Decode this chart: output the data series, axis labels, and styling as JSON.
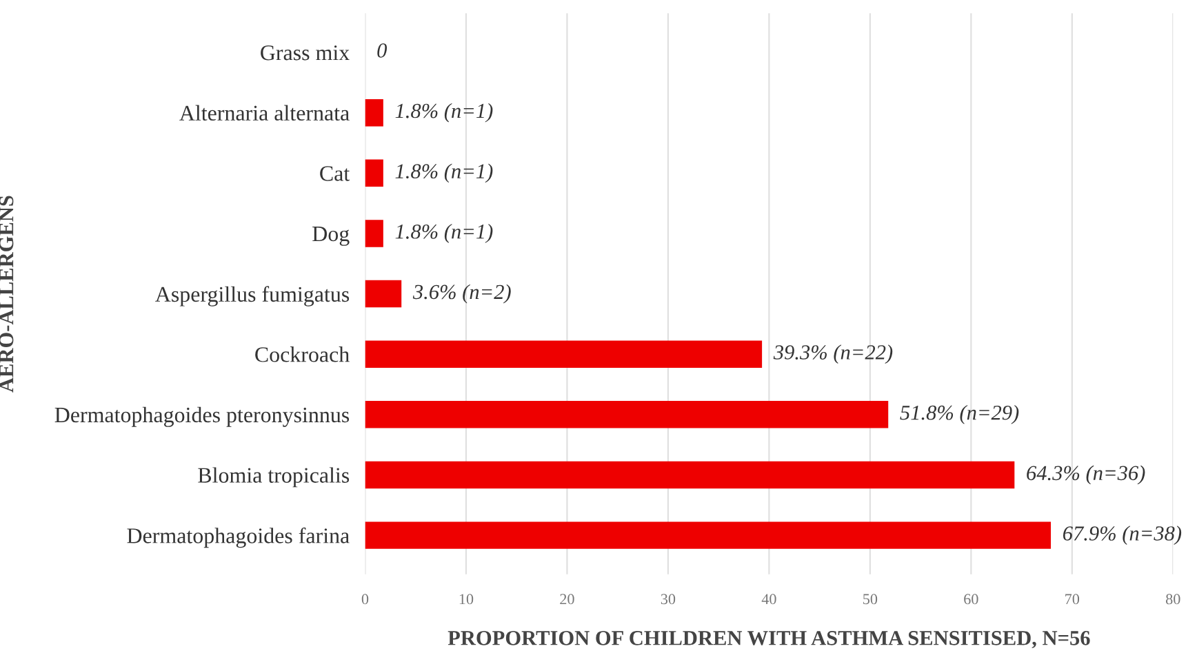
{
  "chart_data": {
    "type": "bar",
    "orientation": "horizontal",
    "categories": [
      "Grass mix",
      "Alternaria alternata",
      "Cat",
      "Dog",
      "Aspergillus fumigatus",
      "Cockroach",
      "Dermatophagoides pteronysinnus",
      "Blomia tropicalis",
      "Dermatophagoides farina"
    ],
    "values": [
      0,
      1.8,
      1.8,
      1.8,
      3.6,
      39.3,
      51.8,
      64.3,
      67.9
    ],
    "value_labels": [
      "0",
      "1.8% (n=1)",
      "1.8% (n=1)",
      "1.8% (n=1)",
      "3.6% (n=2)",
      "39.3% (n=22)",
      "51.8% (n=29)",
      "64.3% (n=36)",
      "67.9% (n=38)"
    ],
    "color": "#ee0000",
    "xlabel": "PROPORTION OF CHILDREN WITH ASTHMA SENSITISED, N=56",
    "ylabel": "AERO-ALLERGENS",
    "xlim": [
      0,
      80
    ],
    "xticks": [
      0,
      10,
      20,
      30,
      40,
      50,
      60,
      70,
      80
    ],
    "grid": "x",
    "legend": false
  }
}
